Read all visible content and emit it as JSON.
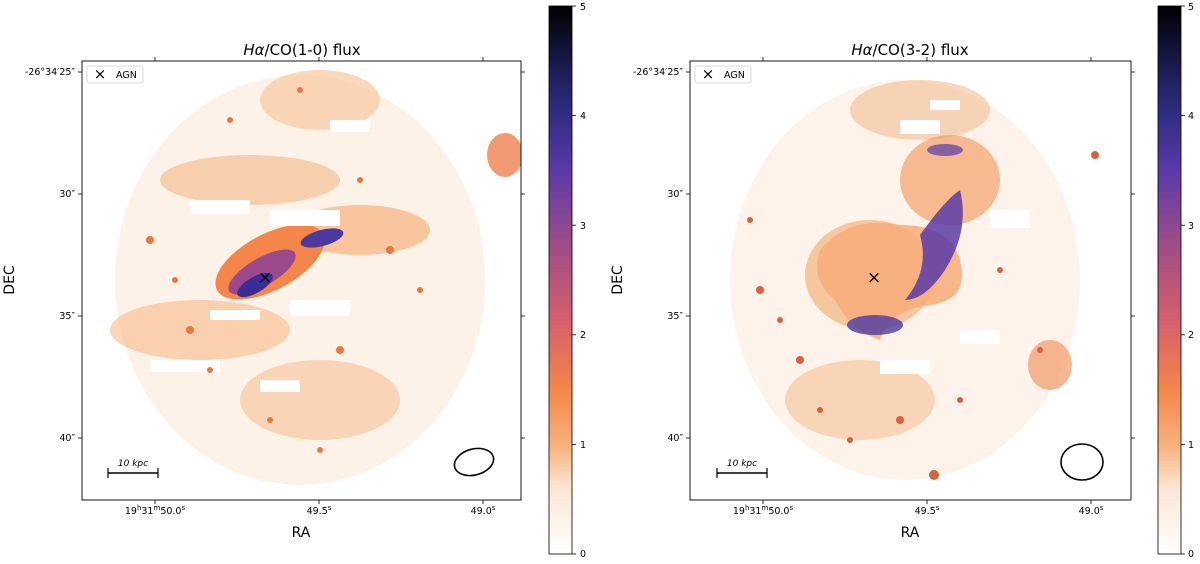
{
  "chart_data": [
    {
      "type": "heatmap",
      "title_main": "Hα",
      "title": "Hα/CO(1-0) flux",
      "title_suffix": "/CO(1-0) flux",
      "xlabel": "RA",
      "ylabel": "DEC",
      "xticks": [
        {
          "label": "19h31m50.0s",
          "h": "19",
          "m": "31",
          "s": "50.0"
        },
        {
          "label": "49.5s",
          "s": "49.5"
        },
        {
          "label": "49.0s",
          "s": "49.0"
        }
      ],
      "yticks": [
        "-26°34′25″",
        "30″",
        "35″",
        "40″"
      ],
      "colorbar": {
        "ticks": [
          "0",
          "1",
          "2",
          "3",
          "4",
          "5"
        ],
        "min": 0,
        "max": 5
      },
      "legend": {
        "marker": "×",
        "label": "AGN"
      },
      "scalebar": "10 kpc",
      "agn_marker": "×"
    },
    {
      "type": "heatmap",
      "title_main": "Hα",
      "title": "Hα/CO(3-2) flux",
      "title_suffix": "/CO(3-2) flux",
      "xlabel": "RA",
      "ylabel": "DEC",
      "xticks": [
        {
          "label": "19h31m50.0s",
          "h": "19",
          "m": "31",
          "s": "50.0"
        },
        {
          "label": "49.5s",
          "s": "49.5"
        },
        {
          "label": "49.0s",
          "s": "49.0"
        }
      ],
      "yticks": [
        "-26°34′25″",
        "30″",
        "35″",
        "40″"
      ],
      "colorbar": {
        "ticks": [
          "0",
          "1",
          "2",
          "3",
          "4",
          "5"
        ],
        "min": 0,
        "max": 5
      },
      "legend": {
        "marker": "×",
        "label": "AGN"
      },
      "scalebar": "10 kpc",
      "agn_marker": "×"
    }
  ],
  "colors": {
    "cmap": [
      "#ffffff",
      "#f9d3b0",
      "#f7843c",
      "#c84e6e",
      "#3b2d96",
      "#000000"
    ]
  }
}
